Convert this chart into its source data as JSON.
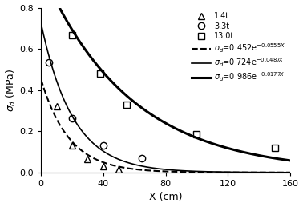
{
  "title": "",
  "xlabel": "X (cm)",
  "ylabel": "$\\sigma_d$ (MPa)",
  "xlim": [
    0,
    160
  ],
  "ylim": [
    0,
    0.8
  ],
  "xticks": [
    0,
    40,
    80,
    120,
    160
  ],
  "yticks": [
    0.0,
    0.2,
    0.4,
    0.6,
    0.8
  ],
  "series_1_4t": {
    "label": "1.4t",
    "marker": "^",
    "x": [
      10,
      20,
      30,
      40,
      50
    ],
    "y": [
      0.32,
      0.13,
      0.065,
      0.03,
      0.015
    ],
    "A": 0.986,
    "b": -0.0177,
    "linestyle": "-",
    "linewidth": 2.2
  },
  "series_3_3t": {
    "label": "3.3t",
    "marker": "o",
    "x": [
      5,
      20,
      40,
      65
    ],
    "y": [
      0.535,
      0.265,
      0.13,
      0.07
    ],
    "A": 0.724,
    "b": -0.0487,
    "linestyle": "-",
    "linewidth": 1.2
  },
  "series_13t": {
    "label": "13.0t",
    "marker": "s",
    "x": [
      20,
      38,
      55,
      100,
      150
    ],
    "y": [
      0.665,
      0.48,
      0.33,
      0.185,
      0.12
    ],
    "A": 0.452,
    "b": -0.0555,
    "linestyle": "--",
    "linewidth": 1.5
  },
  "figsize": [
    3.78,
    2.59
  ],
  "dpi": 100
}
